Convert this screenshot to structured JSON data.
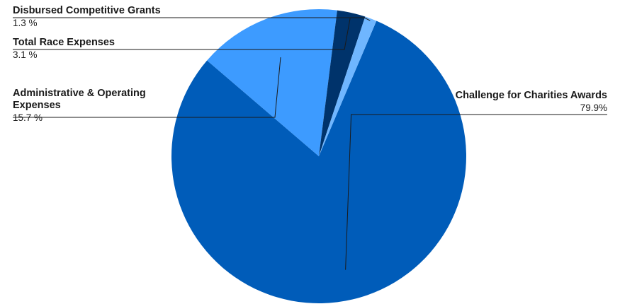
{
  "chart_data": {
    "type": "pie",
    "title": "",
    "slices": [
      {
        "label": "Challenge for Charities Awards",
        "value": 79.9,
        "display": "79.9%",
        "color": "#005cb9"
      },
      {
        "label": "Administrative & Operating Expenses",
        "value": 15.7,
        "display": "15.7 %",
        "color": "#3d9bff"
      },
      {
        "label": "Total Race Expenses",
        "value": 3.1,
        "display": "3.1 %",
        "color": "#00336b"
      },
      {
        "label": "Disbursed Competitive Grants",
        "value": 1.3,
        "display": "1.3 %",
        "color": "#6fb6ff"
      }
    ],
    "legend": "none"
  }
}
